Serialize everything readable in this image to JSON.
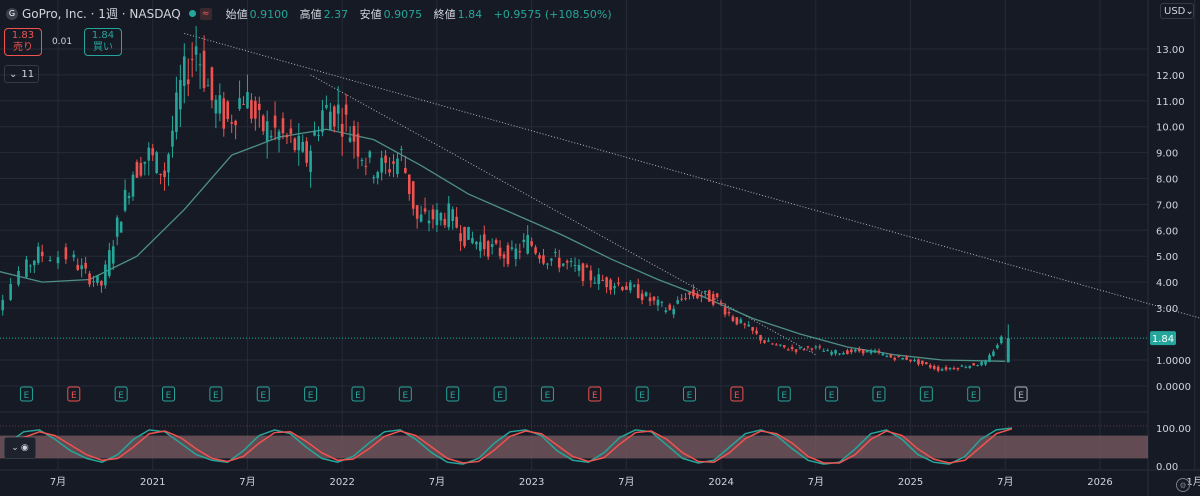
{
  "header": {
    "symbol_icon": "gopro-logo-icon",
    "title": "GoPro, Inc. · 1週 · NASDAQ",
    "ohlc": [
      {
        "k": "始値",
        "v": "0.9100"
      },
      {
        "k": "高値",
        "v": "2.37"
      },
      {
        "k": "安値",
        "v": "0.9075"
      },
      {
        "k": "終値",
        "v": "1.84"
      }
    ],
    "change": "+0.9575 (+108.50%)"
  },
  "trade": {
    "sell_price": "1.83",
    "sell_label": "売り",
    "spread": "0.01",
    "buy_price": "1.84",
    "buy_label": "買い"
  },
  "indicators_toggle": {
    "label": "11",
    "icon": "chevron-down-icon"
  },
  "currency": {
    "label": "USD",
    "icon": "chevron-down-icon"
  },
  "colors": {
    "up": "#26a69a",
    "down": "#ef5350",
    "ma": "#4e8f86",
    "bg": "#161a25",
    "grid": "#252a36"
  },
  "chart_data": [
    {
      "type": "candlestick",
      "title": "GoPro, Inc. · 1週 · NASDAQ",
      "x_labels": [
        "7月",
        "2021",
        "7月",
        "2022",
        "7月",
        "2023",
        "7月",
        "2024",
        "7月",
        "2025",
        "7月",
        "2026",
        "1月"
      ],
      "x_label_dates": [
        "2020-07",
        "2021-01",
        "2021-07",
        "2022-01",
        "2022-07",
        "2023-01",
        "2023-07",
        "2024-01",
        "2024-07",
        "2025-01",
        "2025-07",
        "2026-01",
        "2026-07"
      ],
      "x_range": [
        "2020-02",
        "2026-08"
      ],
      "y_ticks": [
        "13.00",
        "12.00",
        "11.00",
        "10.00",
        "9.00",
        "8.00",
        "7.00",
        "6.00",
        "5.00",
        "4.00",
        "3.00",
        "1.0000",
        "0.0000"
      ],
      "y_scale": "nonlinear (price axis, compressed below 3.00)",
      "last_price_label": "1.84",
      "price_points": [
        [
          "2020-02",
          2.2
        ],
        [
          "2020-03",
          2.6
        ],
        [
          "2020-05",
          4.4
        ],
        [
          "2020-06",
          5.1
        ],
        [
          "2020-08",
          5.0
        ],
        [
          "2020-09",
          4.3
        ],
        [
          "2020-10",
          3.9
        ],
        [
          "2020-11",
          6.2
        ],
        [
          "2020-12",
          8.3
        ],
        [
          "2021-01",
          8.9
        ],
        [
          "2021-02",
          8.2
        ],
        [
          "2021-03",
          11.5
        ],
        [
          "2021-04",
          13.2
        ],
        [
          "2021-05",
          11.0
        ],
        [
          "2021-06",
          10.2
        ],
        [
          "2021-07",
          11.3
        ],
        [
          "2021-08",
          10.0
        ],
        [
          "2021-09",
          9.8
        ],
        [
          "2021-10",
          9.4
        ],
        [
          "2021-11",
          8.8
        ],
        [
          "2021-12",
          10.6
        ],
        [
          "2022-01",
          10.6
        ],
        [
          "2022-02",
          9.6
        ],
        [
          "2022-03",
          8.5
        ],
        [
          "2022-04",
          8.4
        ],
        [
          "2022-05",
          8.9
        ],
        [
          "2022-06",
          6.4
        ],
        [
          "2022-07",
          6.5
        ],
        [
          "2022-08",
          6.6
        ],
        [
          "2022-09",
          5.8
        ],
        [
          "2022-10",
          5.5
        ],
        [
          "2022-11",
          5.2
        ],
        [
          "2022-12",
          5.0
        ],
        [
          "2023-01",
          5.6
        ],
        [
          "2023-02",
          5.0
        ],
        [
          "2023-03",
          4.8
        ],
        [
          "2023-04",
          4.5
        ],
        [
          "2023-05",
          4.2
        ],
        [
          "2023-06",
          4.0
        ],
        [
          "2023-07",
          3.9
        ],
        [
          "2023-08",
          3.6
        ],
        [
          "2023-09",
          3.2
        ],
        [
          "2023-10",
          2.9
        ],
        [
          "2023-11",
          3.5
        ],
        [
          "2023-12",
          3.5
        ],
        [
          "2024-01",
          3.3
        ],
        [
          "2024-02",
          2.6
        ],
        [
          "2024-03",
          2.2
        ],
        [
          "2024-04",
          1.7
        ],
        [
          "2024-05",
          1.5
        ],
        [
          "2024-06",
          1.4
        ],
        [
          "2024-07",
          1.5
        ],
        [
          "2024-08",
          1.3
        ],
        [
          "2024-09",
          1.3
        ],
        [
          "2024-10",
          1.35
        ],
        [
          "2024-11",
          1.3
        ],
        [
          "2024-12",
          1.1
        ],
        [
          "2025-01",
          1.05
        ],
        [
          "2025-02",
          0.85
        ],
        [
          "2025-03",
          0.65
        ],
        [
          "2025-04",
          0.7
        ],
        [
          "2025-05",
          0.8
        ],
        [
          "2025-06",
          0.9
        ],
        [
          "2025-07",
          1.84
        ]
      ],
      "moving_average": [
        [
          "2020-02",
          4.6
        ],
        [
          "2020-06",
          4.0
        ],
        [
          "2020-09",
          4.1
        ],
        [
          "2020-12",
          5.0
        ],
        [
          "2021-03",
          6.8
        ],
        [
          "2021-06",
          8.9
        ],
        [
          "2021-09",
          9.6
        ],
        [
          "2021-12",
          9.9
        ],
        [
          "2022-03",
          9.5
        ],
        [
          "2022-06",
          8.5
        ],
        [
          "2022-09",
          7.4
        ],
        [
          "2022-12",
          6.6
        ],
        [
          "2023-03",
          5.8
        ],
        [
          "2023-06",
          4.9
        ],
        [
          "2023-09",
          4.1
        ],
        [
          "2023-12",
          3.4
        ],
        [
          "2024-03",
          2.6
        ],
        [
          "2024-06",
          2.0
        ],
        [
          "2024-09",
          1.5
        ],
        [
          "2024-12",
          1.2
        ],
        [
          "2025-03",
          1.0
        ],
        [
          "2025-07",
          0.95
        ]
      ],
      "trendlines": [
        {
          "from": [
            "2021-03",
            13.6
          ],
          "to": [
            "2026-08",
            2.5
          ]
        },
        {
          "from": [
            "2021-11",
            12.0
          ],
          "to": [
            "2024-07",
            1.2
          ]
        }
      ],
      "earnings_markers": [
        {
          "date": "2020-05",
          "kind": "E",
          "color": "green"
        },
        {
          "date": "2020-08",
          "kind": "E",
          "color": "red"
        },
        {
          "date": "2020-11",
          "kind": "E",
          "color": "green"
        },
        {
          "date": "2021-02",
          "kind": "E",
          "color": "green"
        },
        {
          "date": "2021-05",
          "kind": "E",
          "color": "green"
        },
        {
          "date": "2021-08",
          "kind": "E",
          "color": "green"
        },
        {
          "date": "2021-11",
          "kind": "E",
          "color": "green"
        },
        {
          "date": "2022-02",
          "kind": "E",
          "color": "green"
        },
        {
          "date": "2022-05",
          "kind": "E",
          "color": "green"
        },
        {
          "date": "2022-08",
          "kind": "E",
          "color": "green"
        },
        {
          "date": "2022-11",
          "kind": "E",
          "color": "green"
        },
        {
          "date": "2023-02",
          "kind": "E",
          "color": "green"
        },
        {
          "date": "2023-05",
          "kind": "E",
          "color": "red"
        },
        {
          "date": "2023-08",
          "kind": "E",
          "color": "green"
        },
        {
          "date": "2023-11",
          "kind": "E",
          "color": "green"
        },
        {
          "date": "2024-02",
          "kind": "E",
          "color": "red"
        },
        {
          "date": "2024-05",
          "kind": "E",
          "color": "green"
        },
        {
          "date": "2024-08",
          "kind": "E",
          "color": "green"
        },
        {
          "date": "2024-11",
          "kind": "E",
          "color": "green"
        },
        {
          "date": "2025-02",
          "kind": "E",
          "color": "green"
        },
        {
          "date": "2025-05",
          "kind": "E",
          "color": "green"
        },
        {
          "date": "2025-08",
          "kind": "E",
          "color": "gray"
        }
      ],
      "grid": true
    },
    {
      "type": "line",
      "title": "",
      "y_ticks": [
        "100.00",
        "0.00"
      ],
      "y_range": [
        0,
        100
      ],
      "band": [
        20,
        80
      ],
      "series": [
        {
          "values": [
            60,
            90,
            95,
            70,
            40,
            20,
            10,
            30,
            70,
            95,
            90,
            60,
            30,
            15,
            10,
            40,
            80,
            95,
            85,
            50,
            20,
            10,
            25,
            60,
            90,
            95,
            70,
            35,
            10,
            5,
            20,
            60,
            90,
            95,
            80,
            40,
            15,
            10,
            35,
            75,
            95,
            90,
            55,
            20,
            8,
            15,
            50,
            85,
            95,
            80,
            45,
            15,
            5,
            10,
            45,
            85,
            95,
            70,
            30,
            10,
            5,
            25,
            70,
            95,
            100
          ]
        },
        {
          "values": [
            50,
            75,
            90,
            80,
            55,
            30,
            15,
            20,
            50,
            85,
            92,
            75,
            45,
            20,
            12,
            25,
            60,
            88,
            90,
            65,
            35,
            15,
            18,
            45,
            78,
            92,
            80,
            50,
            20,
            8,
            12,
            42,
            78,
            92,
            85,
            55,
            25,
            12,
            22,
            58,
            88,
            92,
            70,
            35,
            12,
            10,
            35,
            72,
            92,
            85,
            60,
            25,
            8,
            8,
            30,
            70,
            92,
            80,
            45,
            18,
            8,
            15,
            50,
            85,
            98
          ]
        }
      ]
    }
  ]
}
